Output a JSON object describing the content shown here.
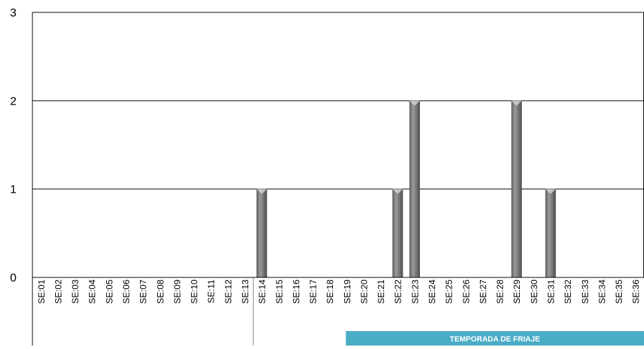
{
  "chart_data": {
    "type": "bar",
    "title": "",
    "xlabel": "",
    "ylabel": "",
    "ylim": [
      0,
      3
    ],
    "yticks": [
      "0",
      "1",
      "2",
      "3"
    ],
    "grid": true,
    "categories": [
      "SE:01",
      "SE:02",
      "SE:03",
      "SE:04",
      "SE:05",
      "SE:06",
      "SE:07",
      "SE:08",
      "SE:09",
      "SE:10",
      "SE:11",
      "SE:12",
      "SE:13",
      "SE:14",
      "SE:15",
      "SE:16",
      "SE:17",
      "SE:18",
      "SE:19",
      "SE:20",
      "SE:21",
      "SE:22",
      "SE:23",
      "SE:24",
      "SE:25",
      "SE:26",
      "SE:27",
      "SE:28",
      "SE:29",
      "SE:30",
      "SE:31",
      "SE:32",
      "SE:33",
      "SE:34",
      "SE:35",
      "SE:36"
    ],
    "values": [
      0,
      0,
      0,
      0,
      0,
      0,
      0,
      0,
      0,
      0,
      0,
      0,
      0,
      1,
      0,
      0,
      0,
      0,
      0,
      0,
      0,
      1,
      2,
      0,
      0,
      0,
      0,
      0,
      2,
      0,
      1,
      0,
      0,
      0,
      0,
      0
    ],
    "bar_color": "#7a7a7a",
    "band": {
      "label": "TEMPORADA  DE FRIAJE",
      "start_category": "SE:19",
      "end_category": "SE:36",
      "color": "#4bacc6"
    },
    "divider_after_category": "SE:13"
  }
}
